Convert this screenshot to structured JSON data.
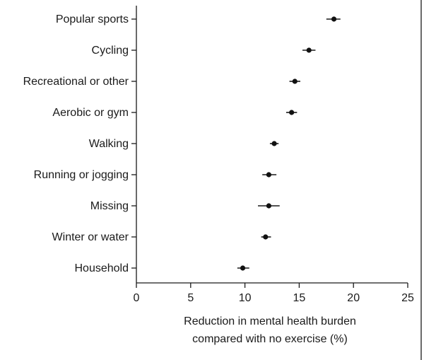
{
  "chart_data": {
    "type": "scatter",
    "title": "",
    "xlabel_lines": [
      "Reduction in mental health burden",
      "compared with no exercise (%)"
    ],
    "ylabel": "",
    "xlim": [
      0,
      25
    ],
    "xticks": [
      0,
      5,
      10,
      15,
      20,
      25
    ],
    "grid": false,
    "categories": [
      "Popular sports",
      "Cycling",
      "Recreational or other",
      "Aerobic or gym",
      "Walking",
      "Running or jogging",
      "Missing",
      "Winter or water",
      "Household"
    ],
    "estimates": [
      18.2,
      15.9,
      14.6,
      14.3,
      12.7,
      12.2,
      12.2,
      11.9,
      9.8
    ],
    "ci_low": [
      17.5,
      15.3,
      14.1,
      13.8,
      12.3,
      11.6,
      11.2,
      11.5,
      9.3
    ],
    "ci_high": [
      18.8,
      16.5,
      15.1,
      14.8,
      13.1,
      12.9,
      13.2,
      12.4,
      10.4
    ]
  }
}
